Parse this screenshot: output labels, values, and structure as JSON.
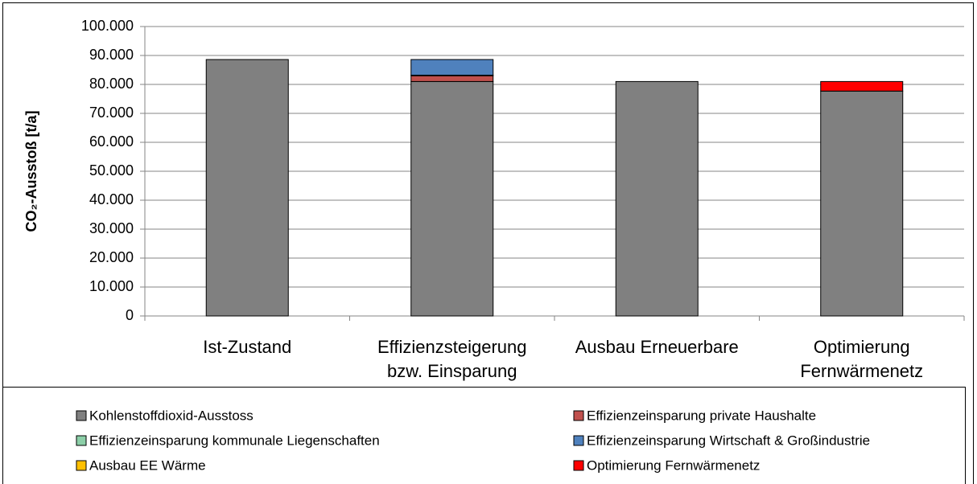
{
  "chart_data": {
    "type": "stacked_bar",
    "y_label": "CO₂-Ausstoß [t/a]",
    "categories": [
      "Ist-Zustand",
      "Effizienzsteigerung\nbzw. Einsparung",
      "Ausbau Erneuerbare",
      "Optimierung\nFernwärmenetz"
    ],
    "series": [
      {
        "name": "Kohlenstoffdioxid-Ausstoss",
        "color": "#808080",
        "values": [
          88600,
          81000,
          81000,
          77700
        ]
      },
      {
        "name": "Effizienzeinsparung private Haushalte",
        "color": "#c0504d",
        "values": [
          0,
          2000,
          0,
          0
        ]
      },
      {
        "name": "Effizienzeinsparung kommunale Liegenschaften",
        "color": "#8ccfa8",
        "values": [
          0,
          200,
          0,
          0
        ]
      },
      {
        "name": "Effizienzeinsparung Wirtschaft & Großindustrie",
        "color": "#4f81bd",
        "values": [
          0,
          5400,
          0,
          0
        ]
      },
      {
        "name": "Ausbau EE Wärme",
        "color": "#ffc000",
        "values": [
          0,
          0,
          0,
          0
        ]
      },
      {
        "name": "Optimierung Fernwärmenetz",
        "color": "#ff0000",
        "values": [
          0,
          0,
          0,
          3300
        ]
      }
    ],
    "ylim": [
      0,
      100000
    ],
    "yticks": [
      0,
      {
        "value": 10000,
        "label": "10.000"
      },
      {
        "value": 20000,
        "label": "20.000"
      },
      {
        "value": 30000,
        "label": "30.000"
      },
      {
        "value": 40000,
        "label": "40.000"
      },
      {
        "value": 50000,
        "label": "50.000"
      },
      {
        "value": 60000,
        "label": "60.000"
      },
      {
        "value": 70000,
        "label": "70.000"
      },
      {
        "value": 80000,
        "label": "80.000"
      },
      {
        "value": 90000,
        "label": "90.000"
      },
      {
        "value": 100000,
        "label": "100.000"
      }
    ],
    "grid": true,
    "legend": "bottom"
  }
}
